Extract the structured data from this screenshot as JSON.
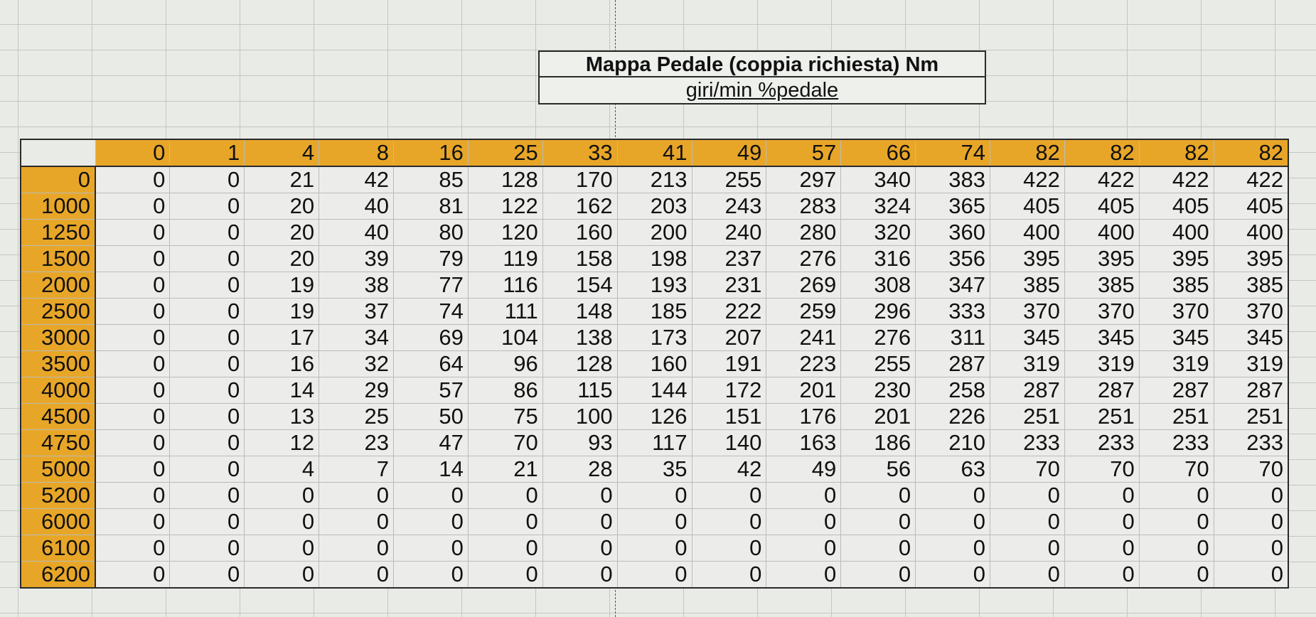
{
  "title": "Mappa Pedale (coppia richiesta) Nm",
  "subtitle": "giri/min %pedale",
  "column_headers": [
    "0",
    "1",
    "4",
    "8",
    "16",
    "25",
    "33",
    "41",
    "49",
    "57",
    "66",
    "74",
    "82",
    "82",
    "82",
    "82"
  ],
  "rows": [
    {
      "rpm": "0",
      "values": [
        "0",
        "0",
        "21",
        "42",
        "85",
        "128",
        "170",
        "213",
        "255",
        "297",
        "340",
        "383",
        "422",
        "422",
        "422",
        "422"
      ]
    },
    {
      "rpm": "1000",
      "values": [
        "0",
        "0",
        "20",
        "40",
        "81",
        "122",
        "162",
        "203",
        "243",
        "283",
        "324",
        "365",
        "405",
        "405",
        "405",
        "405"
      ]
    },
    {
      "rpm": "1250",
      "values": [
        "0",
        "0",
        "20",
        "40",
        "80",
        "120",
        "160",
        "200",
        "240",
        "280",
        "320",
        "360",
        "400",
        "400",
        "400",
        "400"
      ]
    },
    {
      "rpm": "1500",
      "values": [
        "0",
        "0",
        "20",
        "39",
        "79",
        "119",
        "158",
        "198",
        "237",
        "276",
        "316",
        "356",
        "395",
        "395",
        "395",
        "395"
      ]
    },
    {
      "rpm": "2000",
      "values": [
        "0",
        "0",
        "19",
        "38",
        "77",
        "116",
        "154",
        "193",
        "231",
        "269",
        "308",
        "347",
        "385",
        "385",
        "385",
        "385"
      ]
    },
    {
      "rpm": "2500",
      "values": [
        "0",
        "0",
        "19",
        "37",
        "74",
        "111",
        "148",
        "185",
        "222",
        "259",
        "296",
        "333",
        "370",
        "370",
        "370",
        "370"
      ]
    },
    {
      "rpm": "3000",
      "values": [
        "0",
        "0",
        "17",
        "34",
        "69",
        "104",
        "138",
        "173",
        "207",
        "241",
        "276",
        "311",
        "345",
        "345",
        "345",
        "345"
      ]
    },
    {
      "rpm": "3500",
      "values": [
        "0",
        "0",
        "16",
        "32",
        "64",
        "96",
        "128",
        "160",
        "191",
        "223",
        "255",
        "287",
        "319",
        "319",
        "319",
        "319"
      ]
    },
    {
      "rpm": "4000",
      "values": [
        "0",
        "0",
        "14",
        "29",
        "57",
        "86",
        "115",
        "144",
        "172",
        "201",
        "230",
        "258",
        "287",
        "287",
        "287",
        "287"
      ]
    },
    {
      "rpm": "4500",
      "values": [
        "0",
        "0",
        "13",
        "25",
        "50",
        "75",
        "100",
        "126",
        "151",
        "176",
        "201",
        "226",
        "251",
        "251",
        "251",
        "251"
      ]
    },
    {
      "rpm": "4750",
      "values": [
        "0",
        "0",
        "12",
        "23",
        "47",
        "70",
        "93",
        "117",
        "140",
        "163",
        "186",
        "210",
        "233",
        "233",
        "233",
        "233"
      ]
    },
    {
      "rpm": "5000",
      "values": [
        "0",
        "0",
        "4",
        "7",
        "14",
        "21",
        "28",
        "35",
        "42",
        "49",
        "56",
        "63",
        "70",
        "70",
        "70",
        "70"
      ]
    },
    {
      "rpm": "5200",
      "values": [
        "0",
        "0",
        "0",
        "0",
        "0",
        "0",
        "0",
        "0",
        "0",
        "0",
        "0",
        "0",
        "0",
        "0",
        "0",
        "0"
      ]
    },
    {
      "rpm": "6000",
      "values": [
        "0",
        "0",
        "0",
        "0",
        "0",
        "0",
        "0",
        "0",
        "0",
        "0",
        "0",
        "0",
        "0",
        "0",
        "0",
        "0"
      ]
    },
    {
      "rpm": "6100",
      "values": [
        "0",
        "0",
        "0",
        "0",
        "0",
        "0",
        "0",
        "0",
        "0",
        "0",
        "0",
        "0",
        "0",
        "0",
        "0",
        "0"
      ]
    },
    {
      "rpm": "6200",
      "values": [
        "0",
        "0",
        "0",
        "0",
        "0",
        "0",
        "0",
        "0",
        "0",
        "0",
        "0",
        "0",
        "0",
        "0",
        "0",
        "0"
      ]
    }
  ],
  "colors": {
    "header_fill": "#e8a628",
    "cell_fill": "#ecedea",
    "grid": "#c3c7c1"
  }
}
